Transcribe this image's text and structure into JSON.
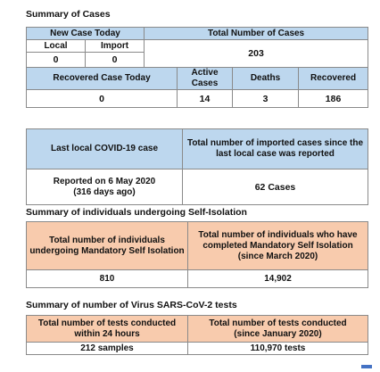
{
  "summary_cases": {
    "heading": "Summary of Cases",
    "new_case_today": "New Case Today",
    "local_label": "Local",
    "import_label": "Import",
    "local_value": "0",
    "import_value": "0",
    "total_cases_label": "Total Number of Cases",
    "total_cases_value": "203",
    "recovered_today_label": "Recovered Case Today",
    "active_cases_label": "Active Cases",
    "deaths_label": "Deaths",
    "recovered_label": "Recovered",
    "recovered_today_value": "0",
    "active_cases_value": "14",
    "deaths_value": "3",
    "recovered_value": "186"
  },
  "local_case": {
    "last_local_label": "Last local COVID-19 case",
    "imported_since_label": "Total number of imported cases since the last local case was reported",
    "reported_on_line1": "Reported on 6 May 2020",
    "reported_on_line2": "(316 days ago)",
    "imported_value": "62 Cases"
  },
  "self_isolation": {
    "heading": "Summary of individuals undergoing Self-Isolation",
    "undergoing_label": "Total number of individuals undergoing Mandatory Self Isolation",
    "completed_label_line1": "Total number of individuals who have completed Mandatory Self Isolation",
    "completed_label_line2": "(since March 2020)",
    "undergoing_value": "810",
    "completed_value": "14,902"
  },
  "tests": {
    "heading": "Summary of number of Virus SARS-CoV-2 tests",
    "within_24h_label": "Total number of tests conducted within 24 hours",
    "since_jan_label_line1": "Total number of tests conducted",
    "since_jan_label_line2": "(since January 2020)",
    "within_24h_value": "212 samples",
    "since_jan_value": "110,970 tests"
  }
}
